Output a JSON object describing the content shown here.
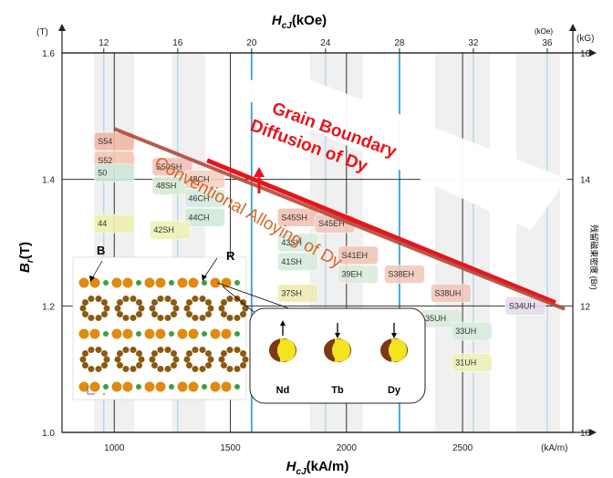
{
  "chart_data": {
    "type": "scatter",
    "title": "",
    "top_axis": {
      "label_main": "H",
      "label_sub": "cJ",
      "label_unit": "(kOe)",
      "ticks": [
        "12",
        "16",
        "20",
        "24",
        "28",
        "32",
        "36"
      ],
      "tick_values": [
        12,
        16,
        20,
        24,
        28,
        32,
        36
      ],
      "unit_right": "(kOe)"
    },
    "bottom_axis": {
      "label_main": "H",
      "label_sub": "cJ",
      "label_unit": "(kA/m)",
      "ticks": [
        "1000",
        "1500",
        "2000",
        "2500"
      ],
      "tick_values": [
        1000,
        1500,
        2000,
        2500
      ],
      "unit_right": "(kA/m)",
      "xlim": [
        775,
        2975
      ]
    },
    "left_axis": {
      "label_main": "B",
      "label_sub": "r",
      "label_unit": "(T)",
      "unit_top": "(T)",
      "ticks": [
        "1.0",
        "1.2",
        "1.4",
        "1.6"
      ],
      "tick_values": [
        1.0,
        1.2,
        1.4,
        1.6
      ],
      "ylim": [
        1.0,
        1.6
      ]
    },
    "right_axis": {
      "unit_top": "(kG)",
      "ticks": [
        "10",
        "12",
        "14",
        "16"
      ],
      "tick_values": [
        10,
        12,
        14,
        16
      ],
      "label": "残留磁束密度 (Br)"
    },
    "grid": true,
    "grades": [
      {
        "name": "S54",
        "hcj": 1000,
        "br": 1.46,
        "color": "#f2b8a8"
      },
      {
        "name": "S52",
        "hcj": 1000,
        "br": 1.43,
        "color": "#f4c8b0"
      },
      {
        "name": "50",
        "hcj": 1000,
        "br": 1.41,
        "color": "#cfe8dc"
      },
      {
        "name": "S50SH",
        "hcj": 1250,
        "br": 1.42,
        "color": "#f0c4ba"
      },
      {
        "name": "48SH",
        "hcj": 1250,
        "br": 1.39,
        "color": "#d8ecd4"
      },
      {
        "name": "48CH",
        "hcj": 1390,
        "br": 1.4,
        "color": "#f5d2c2"
      },
      {
        "name": "46CH",
        "hcj": 1390,
        "br": 1.37,
        "color": "#d6ece2"
      },
      {
        "name": "44CH",
        "hcj": 1390,
        "br": 1.34,
        "color": "#d2ead8"
      },
      {
        "name": "44",
        "hcj": 1000,
        "br": 1.33,
        "color": "#eef2b0"
      },
      {
        "name": "42SH",
        "hcj": 1240,
        "br": 1.32,
        "color": "#eef2b8"
      },
      {
        "name": "S45SH",
        "hcj": 1790,
        "br": 1.34,
        "color": "#f2c2b4"
      },
      {
        "name": "S45EH",
        "hcj": 1950,
        "br": 1.33,
        "color": "#f0cabc"
      },
      {
        "name": "43SH",
        "hcj": 1790,
        "br": 1.3,
        "color": "#d6ece0"
      },
      {
        "name": "41SH",
        "hcj": 1790,
        "br": 1.27,
        "color": "#d8ecdc"
      },
      {
        "name": "37SH",
        "hcj": 1790,
        "br": 1.22,
        "color": "#f0ecb4"
      },
      {
        "name": "S41EH",
        "hcj": 2050,
        "br": 1.28,
        "color": "#f2c6b8"
      },
      {
        "name": "39EH",
        "hcj": 2050,
        "br": 1.25,
        "color": "#dcecdc"
      },
      {
        "name": "S38EH",
        "hcj": 2250,
        "br": 1.25,
        "color": "#f2cabc"
      },
      {
        "name": "S38UH",
        "hcj": 2450,
        "br": 1.22,
        "color": "#f2c8bc"
      },
      {
        "name": "35UH",
        "hcj": 2410,
        "br": 1.18,
        "color": "#dcecdc"
      },
      {
        "name": "33UH",
        "hcj": 2540,
        "br": 1.16,
        "color": "#d8ecdc"
      },
      {
        "name": "31UH",
        "hcj": 2540,
        "br": 1.11,
        "color": "#eef2b8"
      },
      {
        "name": "S34UH",
        "hcj": 2770,
        "br": 1.2,
        "color": "#e8dcec"
      }
    ],
    "series": [
      {
        "name": "Grain Boundary Diffusion of Dy",
        "x": [
          1400,
          2900
        ],
        "y": [
          1.43,
          1.205
        ],
        "color": "#e8141c"
      },
      {
        "name": "Conventional Alloying of Dy",
        "x": [
          1000,
          2940
        ],
        "y": [
          1.48,
          1.195
        ],
        "color": "#b24a3a"
      }
    ],
    "annotations": {
      "gbd_label": "Grain Boundary Diffusion of Dy",
      "conv_label": "Conventional Alloying of Dy",
      "gbd_label_line1": "Grain Boundary",
      "gbd_label_line2": "Diffusion of Dy"
    },
    "inset_crystal": {
      "label_b": "B",
      "label_r": "R"
    },
    "inset_moments": {
      "items": [
        {
          "label": "Nd",
          "direction": "up"
        },
        {
          "label": "Tb",
          "direction": "down"
        },
        {
          "label": "Dy",
          "direction": "down"
        }
      ]
    },
    "colors": {
      "gbd_line": "#e8141c",
      "conv_line": "#b24a3a",
      "grid_blue": "#4aa8d8",
      "atom_orange": "#e08a10",
      "atom_brown": "#8a5a10"
    }
  }
}
